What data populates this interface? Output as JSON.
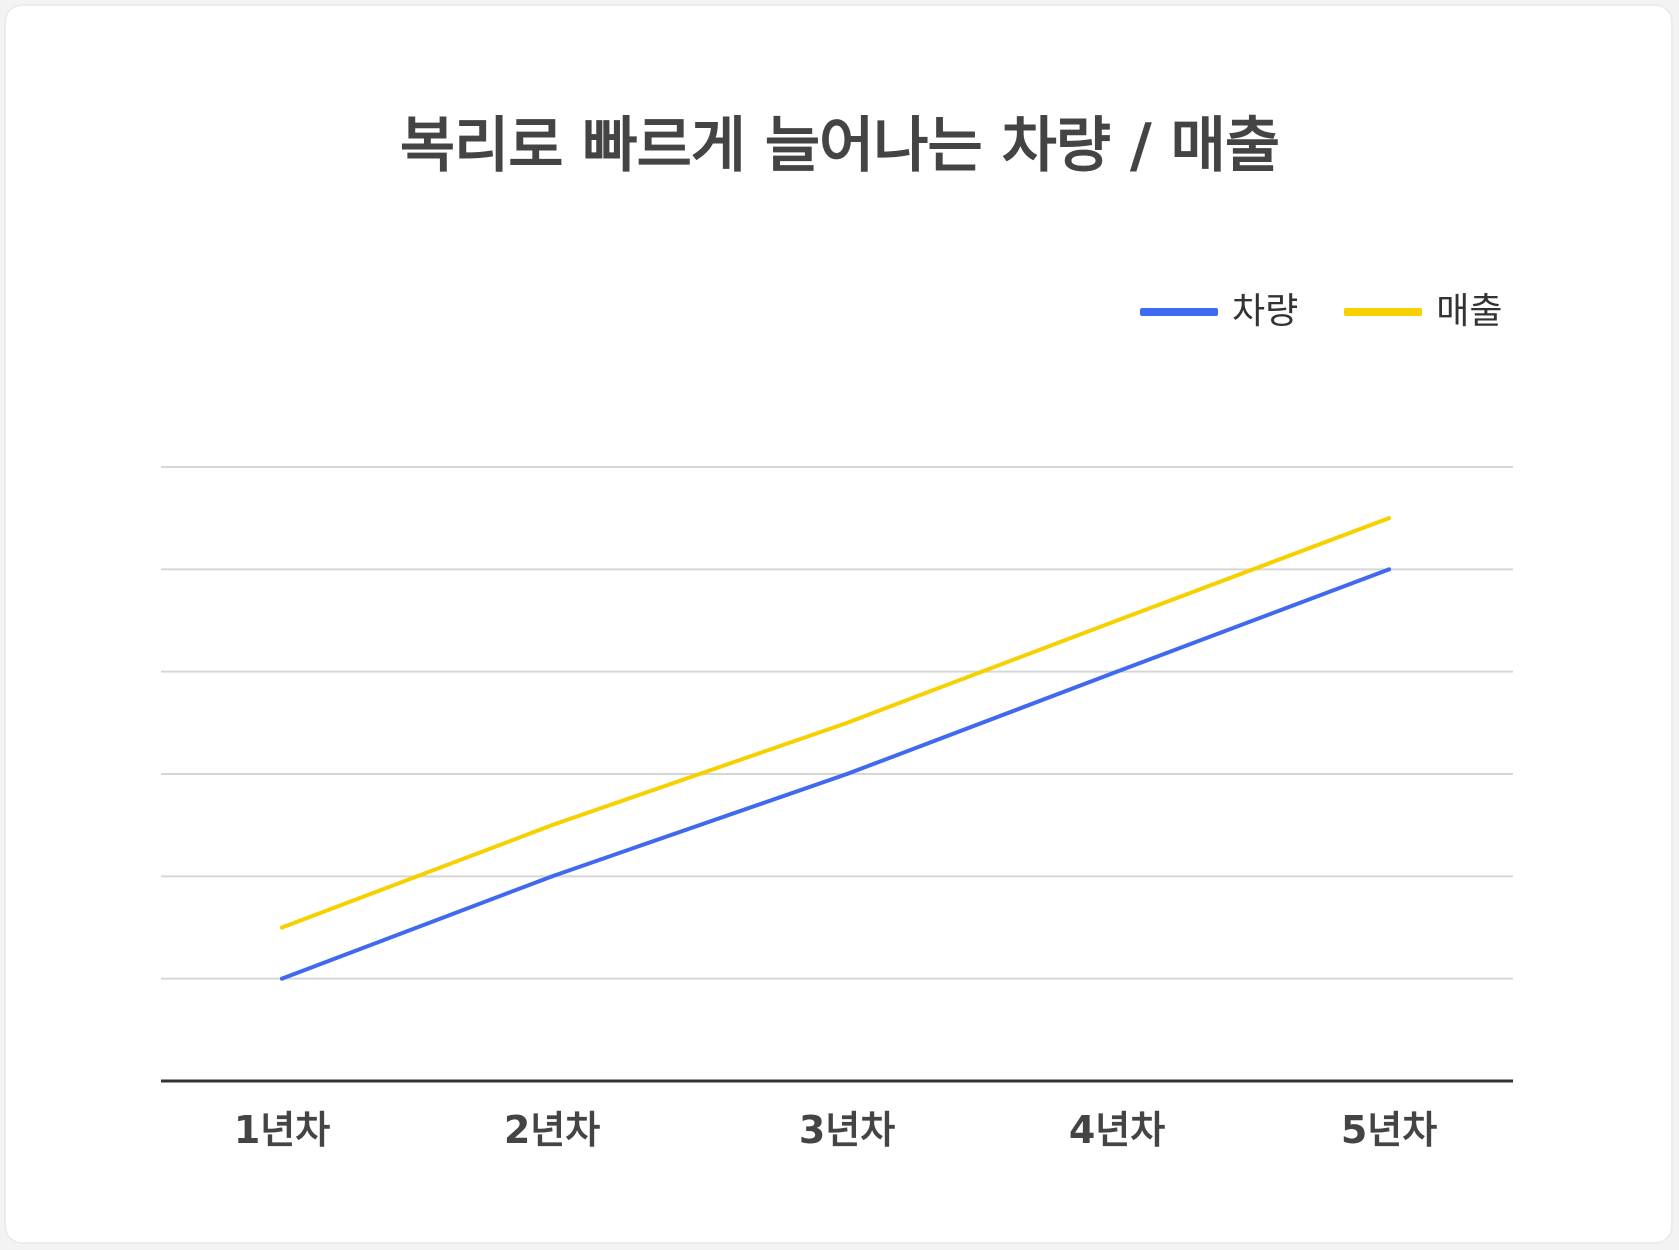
{
  "colors": {
    "vehicles": "#3F6AF0",
    "revenue": "#F7D000",
    "gridline": "#d6d6d6",
    "axis": "#333333"
  },
  "chart_data": {
    "type": "line",
    "title": "복리로 빠르게 늘어나는 차량 / 매출",
    "categories": [
      "1년차",
      "2년차",
      "3년차",
      "4년차",
      "5년차"
    ],
    "series": [
      {
        "name": "차량",
        "values": [
          1,
          2,
          3,
          4,
          5
        ]
      },
      {
        "name": "매출",
        "values": [
          1.5,
          2.5,
          3.5,
          4.5,
          5.5
        ]
      }
    ],
    "ylim": [
      0,
      6
    ],
    "grid": true,
    "legend_position": "top-right",
    "xlabel": "",
    "ylabel": ""
  }
}
